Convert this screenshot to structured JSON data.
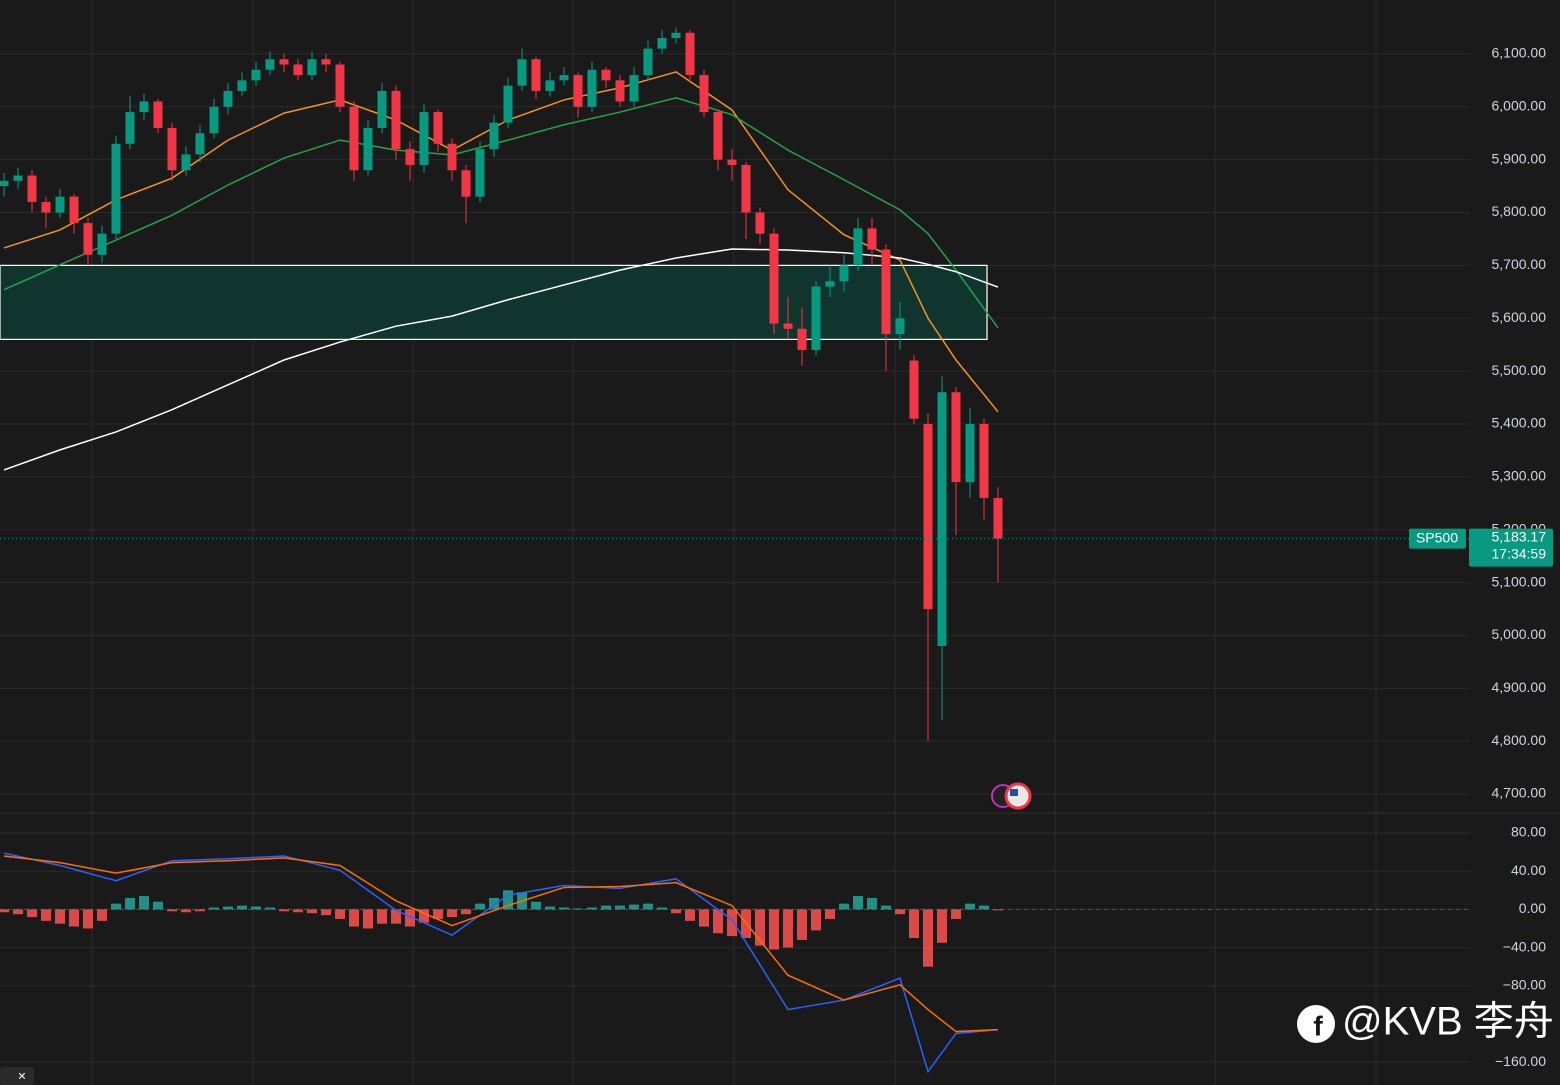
{
  "chart_data": [
    {
      "type": "candlestick",
      "symbol": "SP500",
      "ylim": [
        4666,
        6202
      ],
      "yticks": [
        {
          "value": 4700,
          "label": "4,700.00"
        },
        {
          "value": 4800,
          "label": "4,800.00"
        },
        {
          "value": 4900,
          "label": "4,900.00"
        },
        {
          "value": 5000,
          "label": "5,000.00"
        },
        {
          "value": 5100,
          "label": "5,100.00"
        },
        {
          "value": 5200,
          "label": "5,200.00"
        },
        {
          "value": 5300,
          "label": "5,300.00"
        },
        {
          "value": 5400,
          "label": "5,400.00"
        },
        {
          "value": 5500,
          "label": "5,500.00"
        },
        {
          "value": 5600,
          "label": "5,600.00"
        },
        {
          "value": 5700,
          "label": "5,700.00"
        },
        {
          "value": 5800,
          "label": "5,800.00"
        },
        {
          "value": 5900,
          "label": "5,900.00"
        },
        {
          "value": 6000,
          "label": "6,000.00"
        },
        {
          "value": 6100,
          "label": "6,100.00"
        }
      ],
      "up_color": "#089981",
      "down_color": "#f23645",
      "open": [
        5850,
        5860,
        5870,
        5820,
        5800,
        5830,
        5780,
        5720,
        5760,
        5930,
        5990,
        6010,
        5960,
        5880,
        5910,
        5950,
        6000,
        6030,
        6050,
        6070,
        6090,
        6080,
        6060,
        6090,
        6080,
        6000,
        5880,
        5960,
        6030,
        5920,
        5890,
        5990,
        5930,
        5880,
        5830,
        5920,
        5970,
        6040,
        6090,
        6030,
        6050,
        6060,
        6000,
        6070,
        6050,
        6010,
        6060,
        6110,
        6130,
        6140,
        6060,
        5990,
        5900,
        5890,
        5800,
        5760,
        5590,
        5580,
        5540,
        5660,
        5670,
        5700,
        5770,
        5730,
        5570,
        5520,
        5400,
        4980,
        5460,
        5290,
        5400,
        5260
      ],
      "high": [
        5875,
        5885,
        5880,
        5830,
        5845,
        5835,
        5790,
        5775,
        5945,
        6020,
        6025,
        6015,
        5970,
        5925,
        5965,
        6015,
        6045,
        6065,
        6085,
        6105,
        6100,
        6090,
        6105,
        6100,
        6085,
        6010,
        5975,
        6045,
        6040,
        5935,
        6005,
        5995,
        5940,
        5890,
        5935,
        5985,
        6055,
        6110,
        6095,
        6065,
        6075,
        6065,
        6085,
        6075,
        6060,
        6075,
        6125,
        6145,
        6150,
        6145,
        6070,
        5995,
        5920,
        5895,
        5810,
        5770,
        5640,
        5620,
        5670,
        5700,
        5720,
        5790,
        5790,
        5740,
        5630,
        5530,
        5420,
        5490,
        5470,
        5430,
        5410,
        5280
      ],
      "low": [
        5830,
        5845,
        5800,
        5770,
        5790,
        5760,
        5700,
        5705,
        5750,
        5920,
        5975,
        5950,
        5860,
        5870,
        5895,
        5940,
        5985,
        6020,
        6040,
        6060,
        6065,
        6050,
        6050,
        6065,
        5990,
        5860,
        5870,
        5950,
        5900,
        5860,
        5875,
        5915,
        5860,
        5780,
        5820,
        5905,
        5960,
        6030,
        6015,
        6020,
        6040,
        5980,
        5990,
        6035,
        6000,
        6000,
        6050,
        6100,
        6120,
        6045,
        5980,
        5880,
        5860,
        5750,
        5740,
        5570,
        5560,
        5510,
        5530,
        5640,
        5650,
        5690,
        5700,
        5500,
        5540,
        5400,
        4800,
        4840,
        5190,
        5260,
        5220,
        5100
      ],
      "close": [
        5860,
        5870,
        5820,
        5800,
        5830,
        5780,
        5720,
        5760,
        5930,
        5990,
        6010,
        5960,
        5880,
        5910,
        5950,
        6000,
        6030,
        6050,
        6070,
        6090,
        6080,
        6060,
        6090,
        6080,
        6000,
        5880,
        5960,
        6030,
        5920,
        5890,
        5990,
        5930,
        5880,
        5830,
        5920,
        5970,
        6040,
        6090,
        6030,
        6050,
        6060,
        6000,
        6070,
        6050,
        6010,
        6060,
        6110,
        6130,
        6140,
        6060,
        5990,
        5900,
        5890,
        5800,
        5760,
        5590,
        5580,
        5540,
        5660,
        5670,
        5700,
        5770,
        5730,
        5570,
        5600,
        5410,
        5050,
        5460,
        5290,
        5400,
        5260,
        5183.17
      ],
      "series": [
        {
          "color": "#f7931a",
          "x": [
            0,
            4,
            8,
            12,
            16,
            20,
            24,
            28,
            32,
            36,
            40,
            44,
            48,
            52,
            56,
            60,
            64,
            66,
            68,
            71
          ],
          "values": [
            5733,
            5767,
            5824,
            5865,
            5937,
            5988,
            6013,
            5975,
            5918,
            5975,
            6013,
            6036,
            6066,
            5994,
            5843,
            5758,
            5710,
            5600,
            5521,
            5423
          ]
        },
        {
          "color": "#22a447",
          "x": [
            0,
            4,
            8,
            12,
            16,
            20,
            24,
            28,
            32,
            36,
            40,
            44,
            48,
            52,
            56,
            60,
            64,
            66,
            68,
            71
          ],
          "values": [
            5654,
            5701,
            5748,
            5795,
            5852,
            5903,
            5937,
            5918,
            5909,
            5937,
            5966,
            5990,
            6017,
            5985,
            5918,
            5862,
            5805,
            5760,
            5691,
            5582
          ]
        },
        {
          "color": "#ffffff",
          "x": [
            0,
            4,
            8,
            12,
            16,
            20,
            24,
            28,
            32,
            36,
            40,
            44,
            48,
            52,
            56,
            60,
            64,
            66,
            68,
            71
          ],
          "values": [
            5313,
            5351,
            5385,
            5427,
            5474,
            5521,
            5555,
            5585,
            5604,
            5635,
            5663,
            5691,
            5714,
            5731,
            5729,
            5724,
            5714,
            5702,
            5688,
            5659
          ]
        }
      ],
      "zone": {
        "low": 5560,
        "high": 5700,
        "color": "#0f3b33"
      },
      "last_price": {
        "value": 5183.17,
        "label": "5,183.17"
      },
      "countdown": "17:34:59"
    },
    {
      "type": "macd",
      "ylim": [
        -184,
        101
      ],
      "yticks": [
        {
          "value": 80,
          "label": "80.00"
        },
        {
          "value": 40,
          "label": "40.00"
        },
        {
          "value": 0,
          "label": "0.00"
        },
        {
          "value": -40,
          "label": "−40.00"
        },
        {
          "value": -80,
          "label": "−80.00"
        },
        {
          "value": -160,
          "label": "−160.00"
        }
      ],
      "up_color": "#26a69a",
      "down_color": "#ff5252",
      "histogram": [
        -3,
        -5,
        -8,
        -12,
        -15,
        -18,
        -20,
        -12,
        6,
        12,
        14,
        8,
        -2,
        -3,
        -2,
        2,
        3,
        4,
        3,
        2,
        -2,
        -3,
        -4,
        -6,
        -10,
        -18,
        -20,
        -15,
        -15,
        -18,
        -14,
        -10,
        -8,
        -5,
        6,
        12,
        20,
        18,
        8,
        3,
        2,
        1,
        2,
        4,
        4,
        5,
        6,
        2,
        -4,
        -12,
        -18,
        -25,
        -28,
        -30,
        -38,
        -42,
        -40,
        -32,
        -22,
        -10,
        6,
        14,
        12,
        4,
        -5,
        -30,
        -60,
        -35,
        -10,
        6,
        4,
        -1
      ],
      "series": [
        {
          "color": "#2962ff",
          "x": [
            0,
            4,
            8,
            12,
            16,
            20,
            24,
            28,
            32,
            36,
            40,
            44,
            48,
            52,
            56,
            60,
            64,
            66,
            68,
            71
          ],
          "values": [
            59,
            46,
            30,
            51,
            53,
            56,
            41,
            -1,
            -27,
            15,
            25,
            22,
            32,
            -11,
            -105,
            -95,
            -72,
            -170,
            -130,
            -126
          ]
        },
        {
          "color": "#ff6d00",
          "x": [
            0,
            4,
            8,
            12,
            16,
            20,
            24,
            28,
            32,
            36,
            40,
            44,
            48,
            52,
            56,
            60,
            64,
            66,
            68,
            71
          ],
          "values": [
            56,
            49,
            38,
            49,
            51,
            54,
            46,
            9,
            -17,
            4,
            23,
            24,
            28,
            4,
            -69,
            -95,
            -79,
            -105,
            -128,
            -126
          ]
        }
      ]
    }
  ],
  "watermark": "@KVB 李舟"
}
